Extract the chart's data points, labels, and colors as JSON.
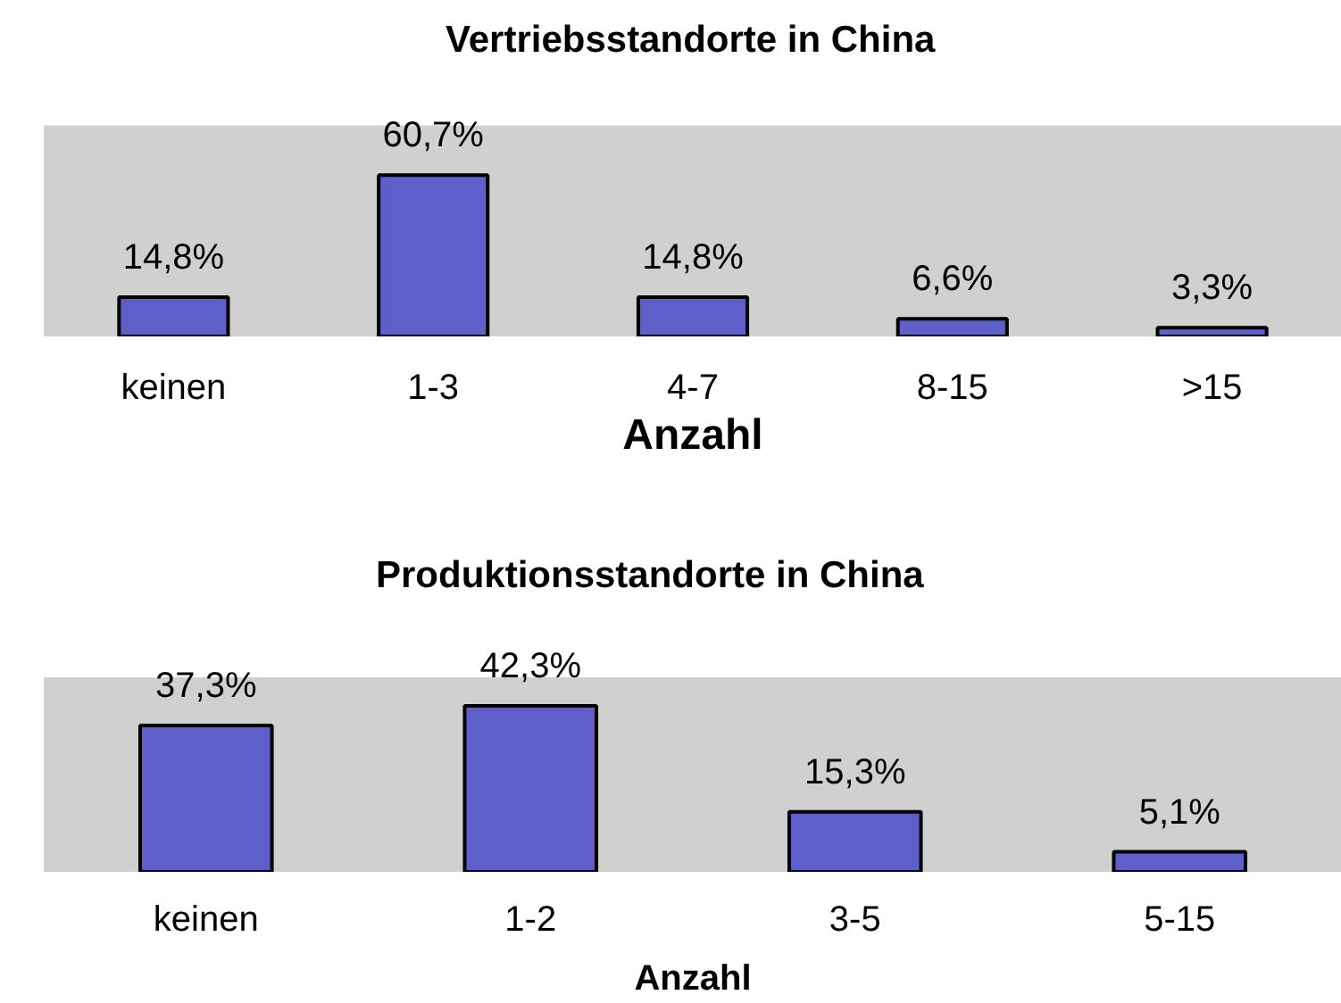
{
  "chart_data": [
    {
      "type": "bar",
      "title": "Vertriebsstandorte in China",
      "xlabel": "Anzahl",
      "categories": [
        "keinen",
        "1-3",
        "4-7",
        "8-15",
        ">15"
      ],
      "values": [
        14.8,
        60.7,
        14.8,
        6.6,
        3.3
      ],
      "value_labels": [
        "14,8%",
        "60,7%",
        "14,8%",
        "6,6%",
        "3,3%"
      ],
      "color": "#5f5fcc"
    },
    {
      "type": "bar",
      "title": "Produktionsstandorte in China",
      "xlabel": "Anzahl",
      "categories": [
        "keinen",
        "1-2",
        "3-5",
        "5-15"
      ],
      "values": [
        37.3,
        42.3,
        15.3,
        5.1
      ],
      "value_labels": [
        "37,3%",
        "42,3%",
        "15,3%",
        "5,1%"
      ],
      "color": "#5f5fcc"
    }
  ]
}
